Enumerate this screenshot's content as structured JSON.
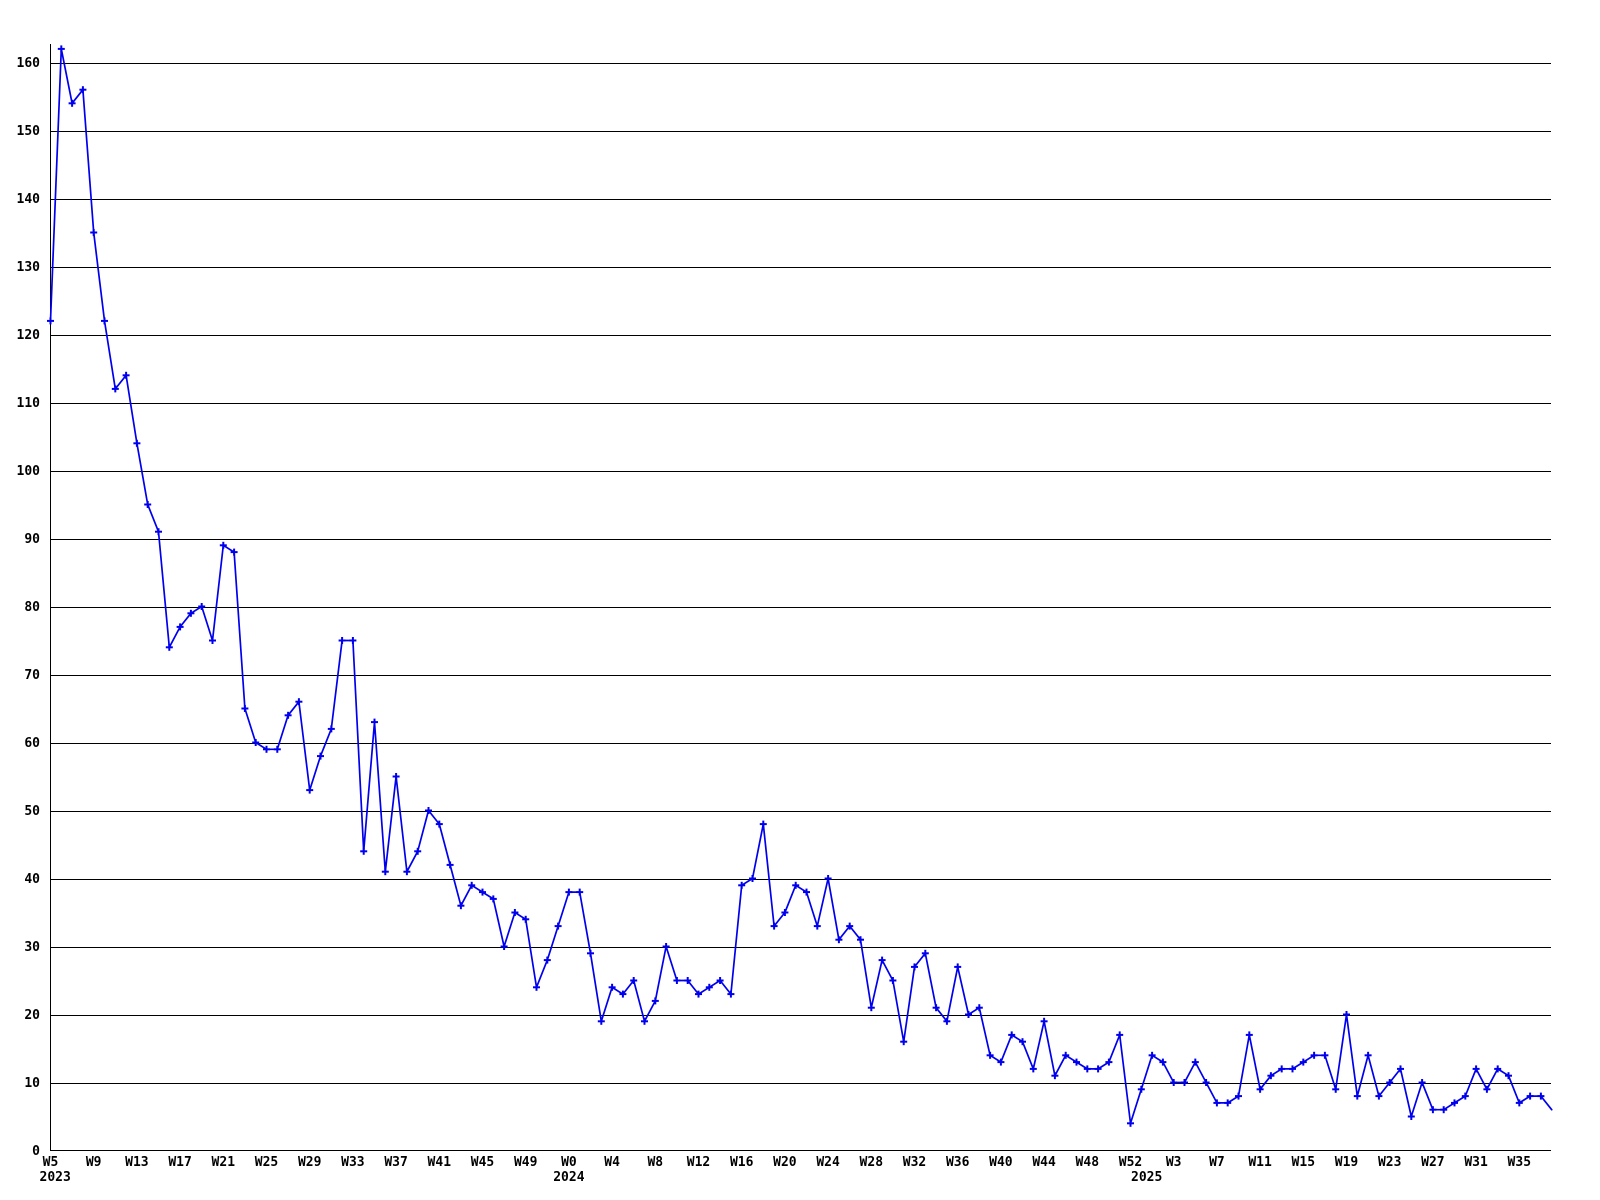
{
  "chart_data": {
    "type": "line",
    "title": "",
    "xlabel": "",
    "ylabel": "",
    "legend": null,
    "grid": true,
    "background_color": "#ffffff",
    "line_color": "#0000ee",
    "marker_shape": "plus",
    "grid_color": "#000000",
    "axis_color": "#000000",
    "text_color": "#000000",
    "ylim": [
      0,
      160
    ],
    "y_tick_step": 10,
    "y_tick_labels": [
      "0",
      "10",
      "20",
      "30",
      "40",
      "50",
      "60",
      "70",
      "80",
      "90",
      "100",
      "110",
      "120",
      "130",
      "140",
      "150",
      "160"
    ],
    "x_tick_every": 4,
    "x_tick_labels": [
      "W5",
      "W9",
      "W13",
      "W17",
      "W21",
      "W25",
      "W29",
      "W33",
      "W37",
      "W41",
      "W45",
      "W49",
      "W0",
      "W4",
      "W8",
      "W12",
      "W16",
      "W20",
      "W24",
      "W28",
      "W32",
      "W36",
      "W40",
      "W44",
      "W48",
      "W52",
      "W3",
      "W7",
      "W11",
      "W15",
      "W19",
      "W23",
      "W27",
      "W31",
      "W35"
    ],
    "year_labels": [
      {
        "text": "2023",
        "week_index": 0,
        "anchor": "start"
      },
      {
        "text": "2024",
        "week_index": 48,
        "anchor": "middle"
      },
      {
        "text": "2025",
        "week_index": 101.5,
        "anchor": "middle"
      }
    ],
    "values": [
      122,
      162,
      154,
      156,
      135,
      122,
      112,
      114,
      104,
      95,
      91,
      74,
      77,
      79,
      80,
      75,
      89,
      88,
      65,
      60,
      59,
      59,
      64,
      66,
      53,
      58,
      62,
      75,
      75,
      44,
      63,
      41,
      55,
      41,
      44,
      50,
      48,
      42,
      36,
      39,
      38,
      37,
      30,
      35,
      34,
      24,
      28,
      33,
      38,
      38,
      29,
      19,
      24,
      23,
      25,
      19,
      22,
      30,
      25,
      25,
      23,
      24,
      25,
      23,
      39,
      40,
      48,
      33,
      35,
      39,
      38,
      33,
      40,
      31,
      33,
      31,
      21,
      28,
      25,
      16,
      27,
      29,
      21,
      19,
      27,
      20,
      21,
      14,
      13,
      17,
      16,
      12,
      19,
      11,
      14,
      13,
      12,
      12,
      13,
      17,
      4,
      9,
      14,
      13,
      10,
      10,
      13,
      10,
      7,
      7,
      8,
      17,
      9,
      11,
      12,
      12,
      13,
      14,
      14,
      9,
      20,
      8,
      14,
      8,
      10,
      12,
      5,
      10,
      6,
      6,
      7,
      8,
      12,
      9,
      12,
      11,
      7,
      8,
      8,
      6
    ]
  }
}
